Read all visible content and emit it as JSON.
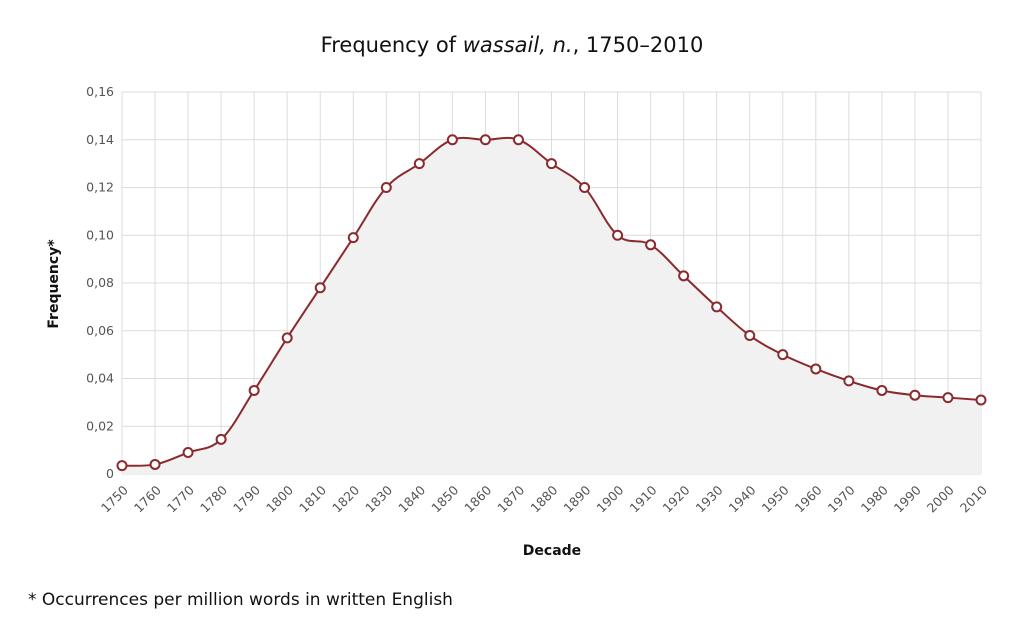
{
  "title": {
    "prefix": "Frequency of ",
    "term": "wassail, n.",
    "suffix": ", 1750–2010"
  },
  "footnote": "* Occurrences per million words in written English",
  "colors": {
    "line": "#8b2a2e",
    "area": "#f1f1f1",
    "grid": "#dcdcdc",
    "marker_fill": "#ffffff"
  },
  "chart_data": {
    "type": "area",
    "title": "Frequency of wassail, n., 1750–2010",
    "xlabel": "Decade",
    "ylabel": "Frequency*",
    "x": [
      1750,
      1760,
      1770,
      1780,
      1790,
      1800,
      1810,
      1820,
      1830,
      1840,
      1850,
      1860,
      1870,
      1880,
      1890,
      1900,
      1910,
      1920,
      1930,
      1940,
      1950,
      1960,
      1970,
      1980,
      1990,
      2000,
      2010
    ],
    "series": [
      {
        "values": [
          0.0035,
          0.004,
          0.009,
          0.0145,
          0.035,
          0.057,
          0.078,
          0.099,
          0.12,
          0.13,
          0.14,
          0.14,
          0.14,
          0.13,
          0.12,
          0.1,
          0.096,
          0.083,
          0.07,
          0.058,
          0.05,
          0.044,
          0.039,
          0.035,
          0.033,
          0.032,
          0.031
        ]
      }
    ],
    "y_ticks": [
      "0",
      "0,02",
      "0,04",
      "0,06",
      "0,08",
      "0,10",
      "0,12",
      "0,14",
      "0,16"
    ],
    "y_tick_values": [
      0,
      0.02,
      0.04,
      0.06,
      0.08,
      0.1,
      0.12,
      0.14,
      0.16
    ],
    "x_tick_labels": [
      "1750",
      "1760",
      "1770",
      "1780",
      "1790",
      "1800",
      "1810",
      "1820",
      "1830",
      "1840",
      "1850",
      "1860",
      "1870",
      "1880",
      "1890",
      "1900",
      "1910",
      "1920",
      "1930",
      "1940",
      "1950",
      "1960",
      "1970",
      "1980",
      "1990",
      "2000",
      "2010"
    ],
    "xlim": [
      1750,
      2010
    ],
    "ylim": [
      0,
      0.16
    ],
    "grid": true,
    "legend": "none",
    "markers": "open-circle"
  }
}
